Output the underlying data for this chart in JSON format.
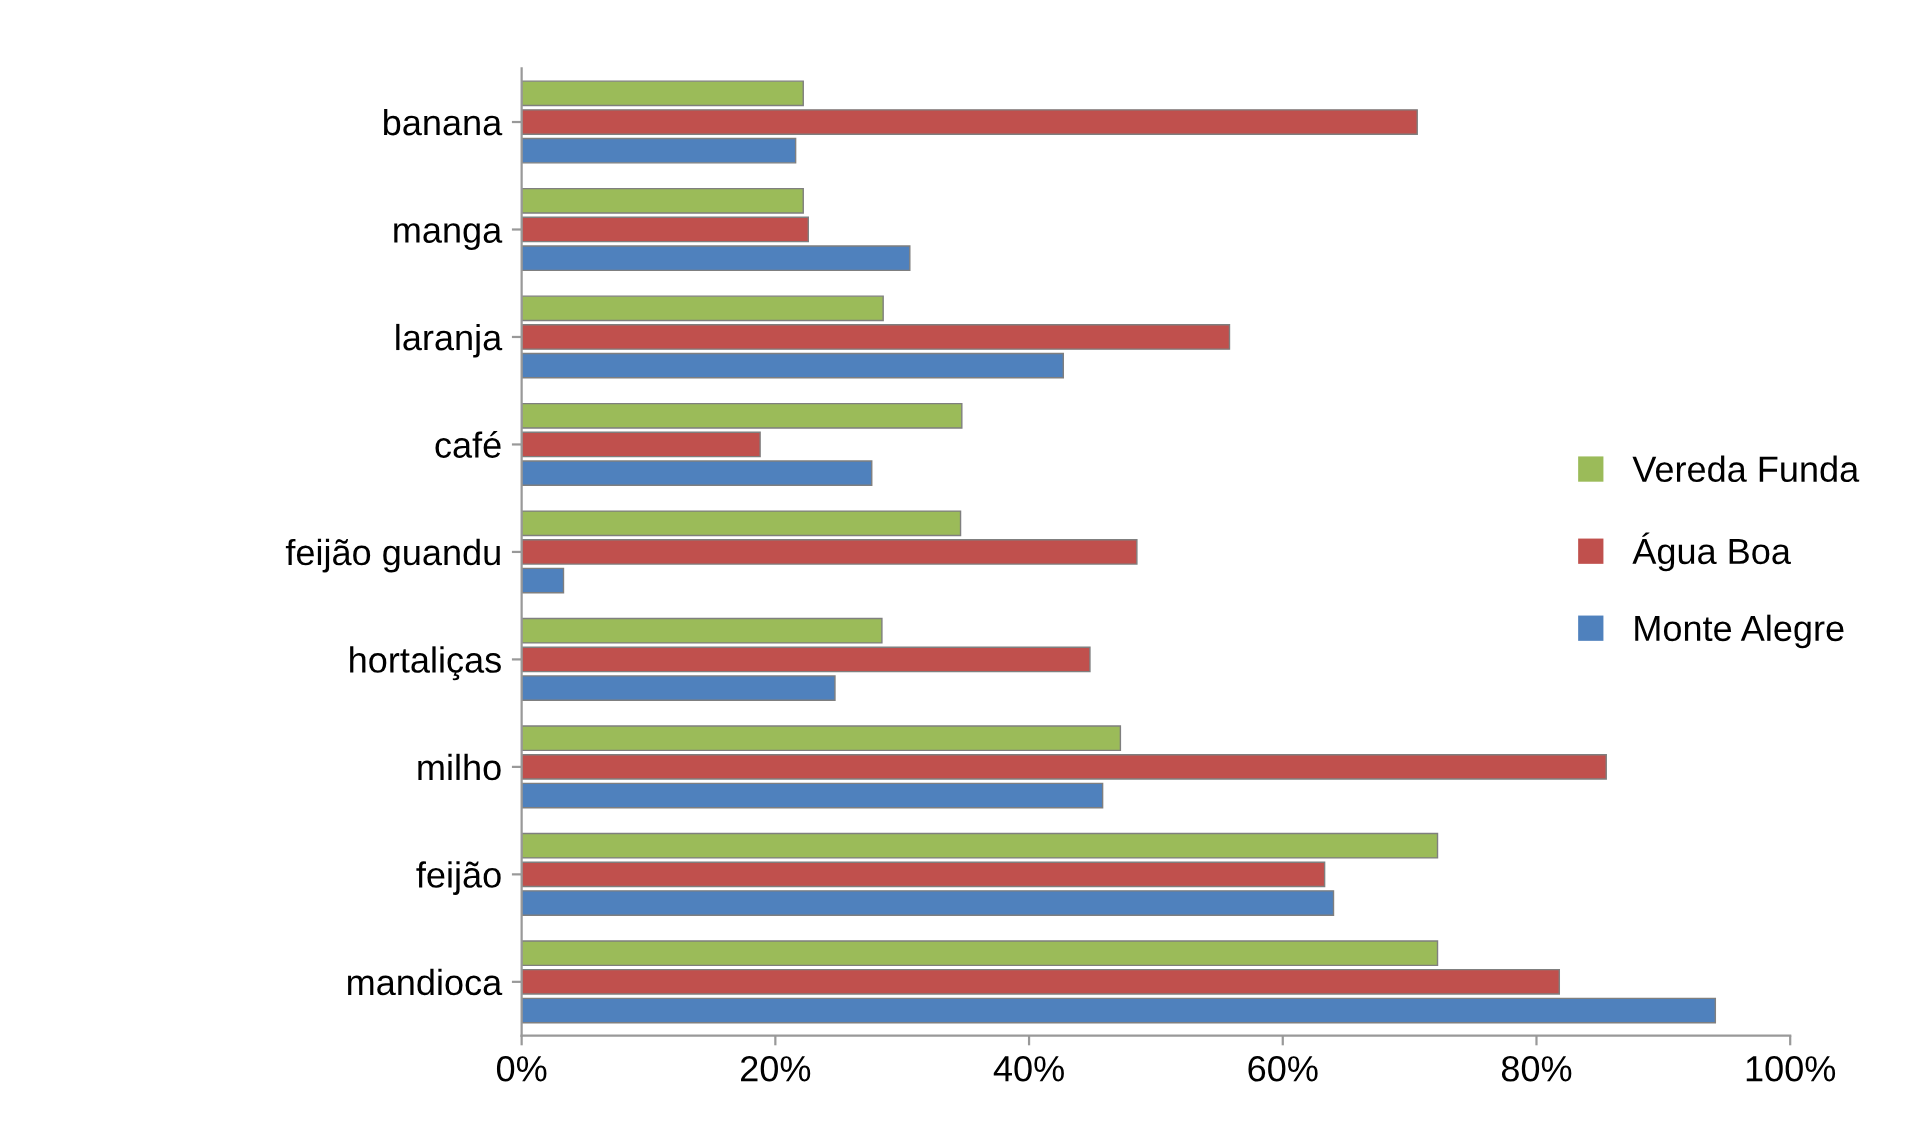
{
  "chart_data": {
    "type": "bar",
    "orientation": "horizontal",
    "categories": [
      "banana",
      "manga",
      "laranja",
      "café",
      "feijão guandu",
      "hortaliças",
      "milho",
      "feijão",
      "mandioca"
    ],
    "series": [
      {
        "name": "Vereda Funda",
        "color": "#9bbb59",
        "values": [
          22.2,
          22.2,
          28.5,
          34.7,
          34.6,
          28.4,
          47.2,
          72.2,
          72.2
        ]
      },
      {
        "name": "Água Boa",
        "color": "#c0504d",
        "values": [
          70.6,
          22.6,
          55.8,
          18.8,
          48.5,
          44.8,
          85.5,
          63.3,
          81.8
        ]
      },
      {
        "name": "Monte Alegre",
        "color": "#4f81bd",
        "values": [
          21.6,
          30.6,
          42.7,
          27.6,
          3.3,
          24.7,
          45.8,
          64.0,
          94.1
        ]
      }
    ],
    "xlim": [
      0,
      100
    ],
    "xticks": [
      {
        "value": 0,
        "label": "0%"
      },
      {
        "value": 20,
        "label": "20%"
      },
      {
        "value": 40,
        "label": "40%"
      },
      {
        "value": 60,
        "label": "60%"
      },
      {
        "value": 80,
        "label": "80%"
      },
      {
        "value": 100,
        "label": "100%"
      }
    ],
    "grid": false,
    "legend": "right"
  }
}
